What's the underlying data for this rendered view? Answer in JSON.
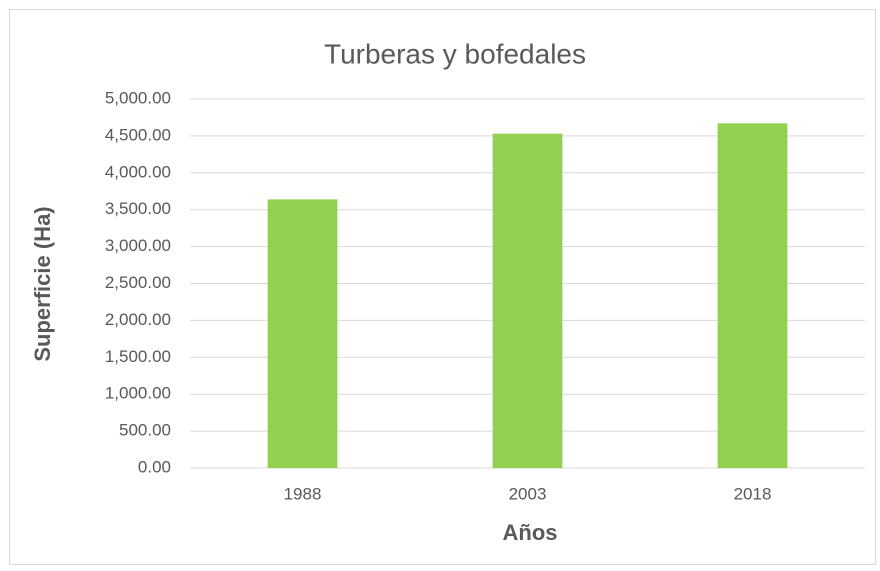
{
  "chart_data": {
    "type": "bar",
    "title": "Turberas y bofedales",
    "x_label": "Años",
    "y_label": "Superficie (Ha)",
    "categories": [
      "1988",
      "2003",
      "2018"
    ],
    "values": [
      3640,
      4530,
      4670
    ],
    "color": "#92d050",
    "ylim": [
      0,
      5000
    ],
    "yticks": [
      {
        "value": 0,
        "label": "0.00"
      },
      {
        "value": 500,
        "label": "500.00"
      },
      {
        "value": 1000,
        "label": "1,000.00"
      },
      {
        "value": 1500,
        "label": "1,500.00"
      },
      {
        "value": 2000,
        "label": "2,000.00"
      },
      {
        "value": 2500,
        "label": "2,500.00"
      },
      {
        "value": 3000,
        "label": "3,000.00"
      },
      {
        "value": 3500,
        "label": "3,500.00"
      },
      {
        "value": 4000,
        "label": "4,000.00"
      },
      {
        "value": 4500,
        "label": "4,500.00"
      },
      {
        "value": 5000,
        "label": "5,000.00"
      }
    ],
    "grid": true
  }
}
